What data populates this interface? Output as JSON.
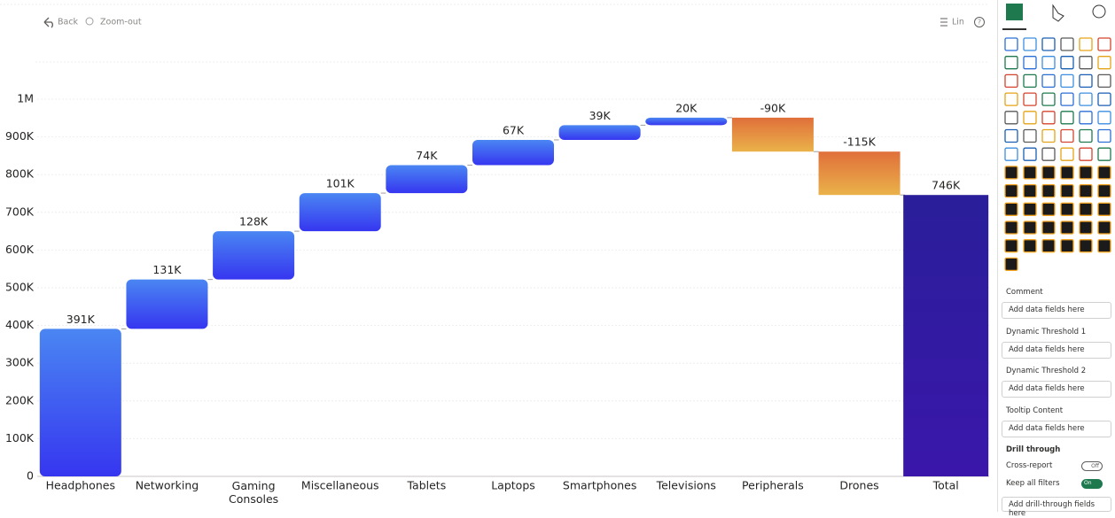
{
  "toolbar": {
    "back": "Back",
    "zoom_out": "Zoom-out",
    "scale": "Lin",
    "help": "?"
  },
  "chart_data": {
    "type": "waterfall",
    "categories": [
      "Headphones",
      "Networking",
      "Gaming Consoles",
      "Miscellaneous",
      "Tablets",
      "Laptops",
      "Smartphones",
      "Televisions",
      "Peripherals",
      "Drones"
    ],
    "values": [
      391000,
      131000,
      128000,
      101000,
      74000,
      67000,
      39000,
      20000,
      -90000,
      -115000
    ],
    "value_labels": [
      "391K",
      "131K",
      "128K",
      "101K",
      "74K",
      "67K",
      "39K",
      "20K",
      "-90K",
      "-115K"
    ],
    "total_label": "Total",
    "total": 746000,
    "total_value_label": "746K",
    "increase_color": [
      "#4a86f2",
      "#3636f0"
    ],
    "decrease_color": [
      "#e06f3a",
      "#eab24a"
    ],
    "total_color": [
      "#2a1e9a",
      "#3a17aa"
    ],
    "ylim": [
      0,
      1000000
    ],
    "yticks": [
      0,
      {
        "value": 100000,
        "label": "100K"
      },
      {
        "value": 200000,
        "label": "200K"
      },
      {
        "value": 300000,
        "label": "300K"
      },
      {
        "value": 400000,
        "label": "400K"
      },
      {
        "value": 500000,
        "label": "500K"
      },
      {
        "value": 600000,
        "label": "600K"
      },
      {
        "value": 700000,
        "label": "700K"
      },
      {
        "value": 800000,
        "label": "800K"
      },
      {
        "value": 900000,
        "label": "900K"
      },
      {
        "value": 1000000,
        "label": "1M"
      }
    ],
    "grid": true
  },
  "panel": {
    "fields": [
      {
        "label": "Comment",
        "placeholder": "Add data fields here"
      },
      {
        "label": "Dynamic Threshold 1",
        "placeholder": "Add data fields here"
      },
      {
        "label": "Dynamic Threshold 2",
        "placeholder": "Add data fields here"
      },
      {
        "label": "Tooltip Content",
        "placeholder": "Add data fields here"
      }
    ],
    "drill_through": {
      "title": "Drill through",
      "cross_report": "Cross-report",
      "cross_report_state": "Off",
      "keep_filters": "Keep all filters",
      "keep_filters_state": "On",
      "placeholder": "Add drill-through fields here"
    }
  }
}
